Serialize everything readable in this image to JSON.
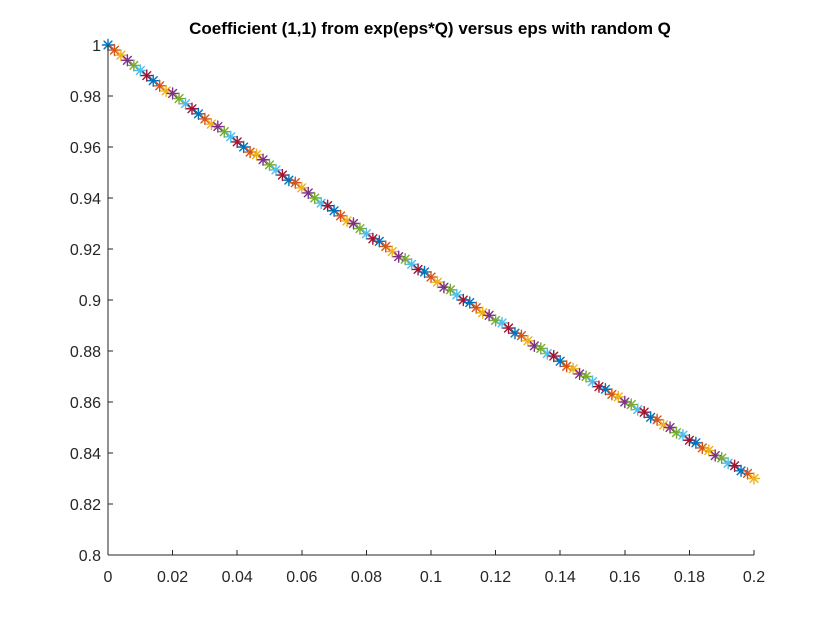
{
  "chart_data": {
    "type": "scatter",
    "title": "Coefficient (1,1) from exp(eps*Q) versus eps with random Q",
    "xlabel": "",
    "ylabel": "",
    "xlim": [
      0,
      0.2
    ],
    "ylim": [
      0.8,
      1.0
    ],
    "x_ticks": [
      "0",
      "0.02",
      "0.04",
      "0.06",
      "0.08",
      "0.1",
      "0.12",
      "0.14",
      "0.16",
      "0.18",
      "0.2"
    ],
    "y_ticks": [
      "0.8",
      "0.82",
      "0.84",
      "0.86",
      "0.88",
      "0.9",
      "0.92",
      "0.94",
      "0.96",
      "0.98",
      "1"
    ],
    "grid": false,
    "legend": "none",
    "marker": "asterisk",
    "colors": [
      "#0072bd",
      "#d95319",
      "#edb120",
      "#7e2f8e",
      "#77ac30",
      "#4dbeee",
      "#a2142f"
    ],
    "series": [
      {
        "x": [
          0.0,
          0.002,
          0.004,
          0.006,
          0.008,
          0.01,
          0.012,
          0.014,
          0.016,
          0.018,
          0.02,
          0.022,
          0.024,
          0.026,
          0.028,
          0.03,
          0.032,
          0.034,
          0.036,
          0.038,
          0.04,
          0.042,
          0.044,
          0.046,
          0.048,
          0.05,
          0.052,
          0.054,
          0.056,
          0.058,
          0.06,
          0.062,
          0.064,
          0.066,
          0.068,
          0.07,
          0.072,
          0.074,
          0.076,
          0.078,
          0.08,
          0.082,
          0.084,
          0.086,
          0.088,
          0.09,
          0.092,
          0.094,
          0.096,
          0.098,
          0.1,
          0.102,
          0.104,
          0.106,
          0.108,
          0.11,
          0.112,
          0.114,
          0.116,
          0.118,
          0.12,
          0.122,
          0.124,
          0.126,
          0.128,
          0.13,
          0.132,
          0.134,
          0.136,
          0.138,
          0.14,
          0.142,
          0.144,
          0.146,
          0.148,
          0.15,
          0.152,
          0.154,
          0.156,
          0.158,
          0.16,
          0.162,
          0.164,
          0.166,
          0.168,
          0.17,
          0.172,
          0.174,
          0.176,
          0.178,
          0.18,
          0.182,
          0.184,
          0.186,
          0.188,
          0.19,
          0.192,
          0.194,
          0.196,
          0.198,
          0.2
        ],
        "y": [
          1.0,
          0.998,
          0.996,
          0.994,
          0.992,
          0.99,
          0.988,
          0.986,
          0.984,
          0.982,
          0.981,
          0.979,
          0.977,
          0.975,
          0.973,
          0.971,
          0.969,
          0.968,
          0.966,
          0.964,
          0.962,
          0.96,
          0.958,
          0.957,
          0.955,
          0.953,
          0.951,
          0.949,
          0.947,
          0.946,
          0.944,
          0.942,
          0.94,
          0.938,
          0.937,
          0.935,
          0.933,
          0.931,
          0.93,
          0.928,
          0.926,
          0.924,
          0.923,
          0.921,
          0.919,
          0.917,
          0.916,
          0.914,
          0.912,
          0.911,
          0.909,
          0.907,
          0.905,
          0.904,
          0.902,
          0.9,
          0.899,
          0.897,
          0.895,
          0.894,
          0.892,
          0.891,
          0.889,
          0.887,
          0.886,
          0.884,
          0.882,
          0.881,
          0.879,
          0.878,
          0.876,
          0.874,
          0.873,
          0.871,
          0.87,
          0.868,
          0.866,
          0.865,
          0.863,
          0.862,
          0.86,
          0.859,
          0.857,
          0.856,
          0.854,
          0.853,
          0.851,
          0.85,
          0.848,
          0.847,
          0.845,
          0.844,
          0.842,
          0.841,
          0.839,
          0.838,
          0.836,
          0.835,
          0.833,
          0.832,
          0.83
        ]
      }
    ]
  }
}
